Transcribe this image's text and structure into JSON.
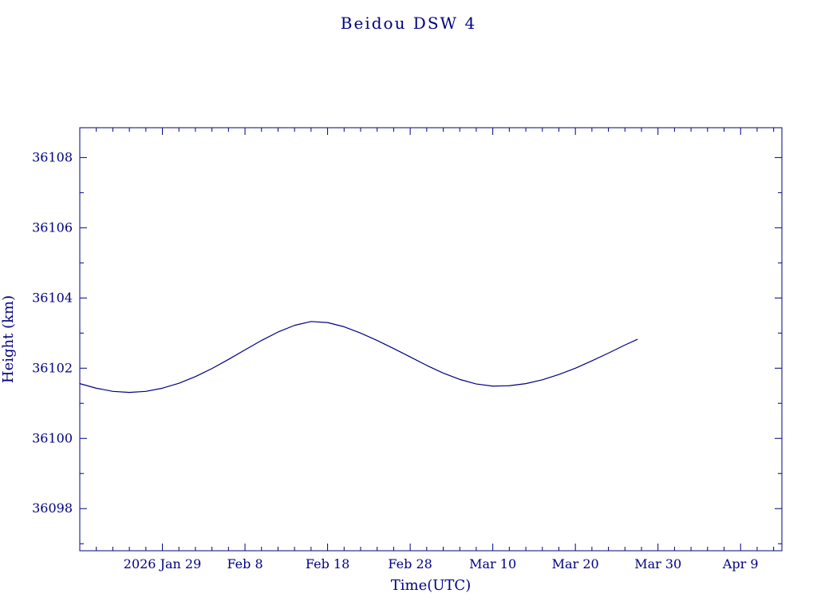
{
  "chart_data": {
    "type": "line",
    "title": "Beidou DSW 4",
    "xlabel": "Time(UTC)",
    "ylabel": "Height (km)",
    "axis_color": "#000080",
    "line_color": "#000080",
    "grid": false,
    "legend": false,
    "x_day_zero": "2026 Jan 19",
    "x_range_days": [
      0,
      85
    ],
    "y_range": [
      36096.8,
      36108.85
    ],
    "x_ticks": [
      {
        "day": 10,
        "label": "2026 Jan 29"
      },
      {
        "day": 20,
        "label": "Feb 8"
      },
      {
        "day": 30,
        "label": "Feb 18"
      },
      {
        "day": 40,
        "label": "Feb 28"
      },
      {
        "day": 50,
        "label": "Mar 10"
      },
      {
        "day": 60,
        "label": "Mar 20"
      },
      {
        "day": 70,
        "label": "Mar 30"
      },
      {
        "day": 80,
        "label": "Apr 9"
      }
    ],
    "x_minor_step_days": 2,
    "y_ticks": [
      {
        "value": 36098,
        "label": "36098"
      },
      {
        "value": 36100,
        "label": "36100"
      },
      {
        "value": 36102,
        "label": "36102"
      },
      {
        "value": 36104,
        "label": "36104"
      },
      {
        "value": 36106,
        "label": "36106"
      },
      {
        "value": 36108,
        "label": "36108"
      }
    ],
    "y_minor_step": 1,
    "series": [
      {
        "name": "Beidou DSW 4 height",
        "x_days": [
          0,
          2,
          4,
          6,
          8,
          10,
          12,
          14,
          16,
          18,
          20,
          22,
          24,
          26,
          28,
          30,
          32,
          34,
          36,
          38,
          40,
          42,
          44,
          46,
          48,
          50,
          52,
          54,
          56,
          58,
          60,
          62,
          64,
          66,
          67.5
        ],
        "y_km": [
          36101.56,
          36101.43,
          36101.34,
          36101.31,
          36101.34,
          36101.43,
          36101.57,
          36101.76,
          36101.99,
          36102.25,
          36102.52,
          36102.79,
          36103.03,
          36103.22,
          36103.33,
          36103.3,
          36103.18,
          36103.0,
          36102.79,
          36102.56,
          36102.32,
          36102.08,
          36101.86,
          36101.68,
          36101.55,
          36101.49,
          36101.5,
          36101.56,
          36101.67,
          36101.82,
          36102.0,
          36102.21,
          36102.43,
          36102.66,
          36102.82
        ]
      }
    ]
  }
}
